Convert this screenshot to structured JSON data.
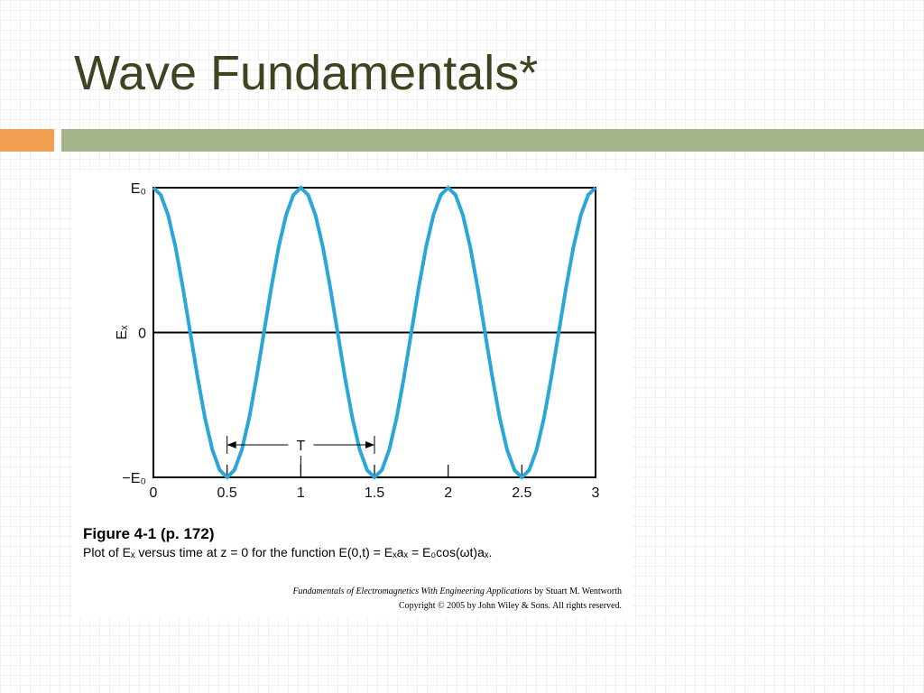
{
  "title": "Wave Fundamentals*",
  "chart_data": {
    "type": "line",
    "ylabel": "Eₓ",
    "x": [
      0,
      0.05,
      0.1,
      0.15,
      0.2,
      0.25,
      0.3,
      0.35,
      0.4,
      0.45,
      0.5,
      0.55,
      0.6,
      0.65,
      0.7,
      0.75,
      0.8,
      0.85,
      0.9,
      0.95,
      1,
      1.05,
      1.1,
      1.15,
      1.2,
      1.25,
      1.3,
      1.35,
      1.4,
      1.45,
      1.5,
      1.55,
      1.6,
      1.65,
      1.7,
      1.75,
      1.8,
      1.85,
      1.9,
      1.95,
      2,
      2.05,
      2.1,
      2.15,
      2.2,
      2.25,
      2.3,
      2.35,
      2.4,
      2.45,
      2.5,
      2.55,
      2.6,
      2.65,
      2.7,
      2.75,
      2.8,
      2.85,
      2.9,
      2.95,
      3
    ],
    "values": [
      1,
      0.95,
      0.81,
      0.59,
      0.31,
      0,
      -0.31,
      -0.59,
      -0.81,
      -0.95,
      -1,
      -0.95,
      -0.81,
      -0.59,
      -0.31,
      0,
      0.31,
      0.59,
      0.81,
      0.95,
      1,
      0.95,
      0.81,
      0.59,
      0.31,
      0,
      -0.31,
      -0.59,
      -0.81,
      -0.95,
      -1,
      -0.95,
      -0.81,
      -0.59,
      -0.31,
      0,
      0.31,
      0.59,
      0.81,
      0.95,
      1,
      0.95,
      0.81,
      0.59,
      0.31,
      0,
      -0.31,
      -0.59,
      -0.81,
      -0.95,
      -1,
      -0.95,
      -0.81,
      -0.59,
      -0.31,
      0,
      0.31,
      0.59,
      0.81,
      0.95,
      1
    ],
    "color": "#2aa6d9",
    "xlim": [
      0,
      3
    ],
    "xticks": [
      0,
      0.5,
      1,
      1.5,
      2,
      2.5,
      3
    ],
    "ylim": [
      -1,
      1
    ],
    "yticks": [
      {
        "value": -1,
        "label": "−E₀"
      },
      {
        "value": 0,
        "label": "0"
      },
      {
        "value": 1,
        "label": "E₀"
      }
    ],
    "annotation": {
      "text": "T",
      "x_start": 0.5,
      "x_end": 1.5
    }
  },
  "caption": {
    "heading": "Figure 4-1  (p. 172)",
    "text": "Plot of Eₓ versus time at z = 0 for the function E(0,t) = Eₓaₓ = E₀cos(ωt)aₓ."
  },
  "credit": {
    "book": "Fundamentals of Electromagnetics With Engineering Applications",
    "author": "by Stuart M. Wentworth",
    "copyright": "Copyright © 2005 by John Wiley & Sons. All rights reserved."
  }
}
